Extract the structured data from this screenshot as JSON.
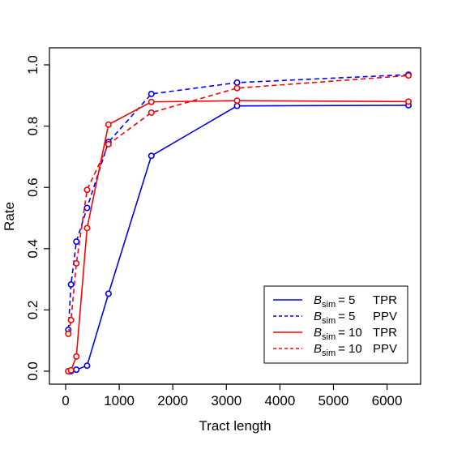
{
  "chart_data": {
    "type": "line",
    "title": "",
    "xlabel": "Tract length",
    "ylabel": "Rate",
    "xlim": [
      0,
      6400
    ],
    "ylim": [
      0,
      1.0
    ],
    "x_ticks": [
      0,
      1000,
      2000,
      3000,
      4000,
      5000,
      6000
    ],
    "x_tick_labels": [
      "0",
      "1000",
      "2000",
      "3000",
      "4000",
      "5000",
      "6000"
    ],
    "y_ticks": [
      0.0,
      0.2,
      0.4,
      0.6,
      0.8,
      1.0
    ],
    "y_tick_labels": [
      "0.0",
      "0.2",
      "0.4",
      "0.6",
      "0.8",
      "1.0"
    ],
    "grid": false,
    "legend_position": "bottom-right",
    "x": [
      50,
      100,
      200,
      400,
      800,
      1600,
      3200,
      6400
    ],
    "series": [
      {
        "legend": {
          "symbol": "B",
          "subscript": "sim",
          "value": "= 5",
          "metric": "TPR"
        },
        "color": "#0000ff",
        "style": "solid",
        "values": [
          0.0,
          0.0,
          0.005,
          0.018,
          0.253,
          0.703,
          0.866,
          0.868
        ]
      },
      {
        "legend": {
          "symbol": "B",
          "subscript": "sim",
          "value": "= 5",
          "metric": "PPV"
        },
        "color": "#0000ff",
        "style": "dashed",
        "values": [
          0.135,
          0.283,
          0.423,
          0.533,
          0.748,
          0.905,
          0.942,
          0.968
        ]
      },
      {
        "legend": {
          "symbol": "B",
          "subscript": "sim",
          "value": "= 10",
          "metric": "TPR"
        },
        "color": "#ff0000",
        "style": "solid",
        "values": [
          0.0,
          0.003,
          0.048,
          0.467,
          0.805,
          0.879,
          0.883,
          0.88
        ]
      },
      {
        "legend": {
          "symbol": "B",
          "subscript": "sim",
          "value": "= 10",
          "metric": "PPV"
        },
        "color": "#ff0000",
        "style": "dashed",
        "values": [
          0.122,
          0.167,
          0.352,
          0.592,
          0.741,
          0.844,
          0.924,
          0.965
        ]
      }
    ]
  }
}
